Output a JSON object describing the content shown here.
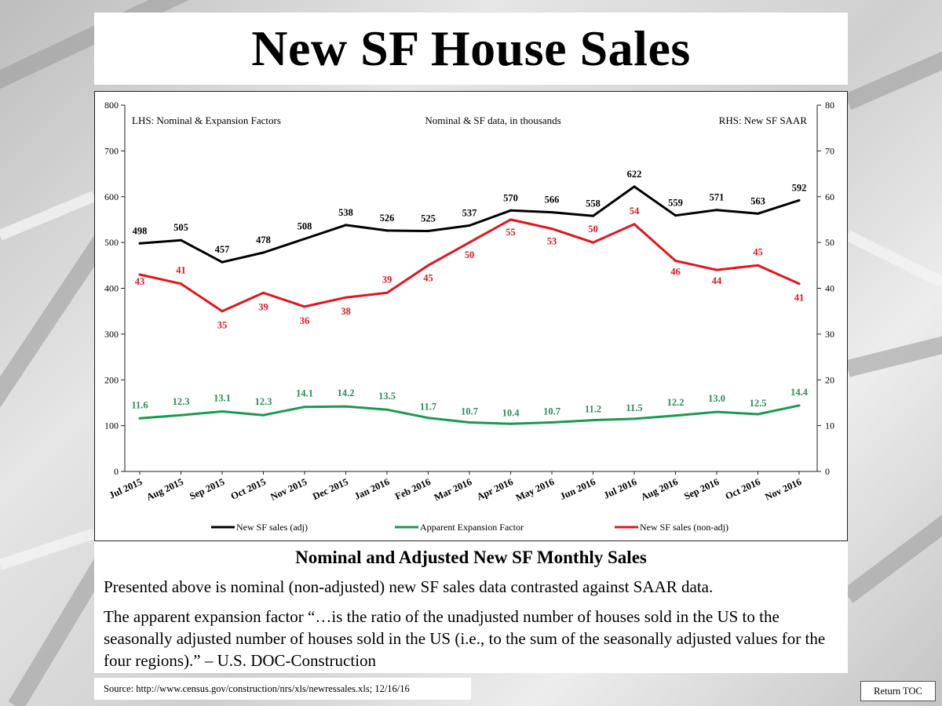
{
  "title": "New SF House Sales",
  "subtitle": "Nominal and Adjusted New SF Monthly Sales",
  "paragraph1": "Presented above is nominal (non-adjusted) new SF sales data contrasted against SAAR data.",
  "paragraph2": "The apparent expansion factor “…is the ratio of the unadjusted number of houses sold in the US to the seasonally adjusted number of houses sold in the US (i.e., to the sum of the seasonally adjusted values for the four regions).” – U.S. DOC-Construction",
  "source": "Source: http://www.census.gov/construction/nrs/xls/newressales.xls; 12/16/16",
  "return_toc": "Return TOC",
  "colors": {
    "adj": "#000000",
    "expansion": "#1a9a50",
    "nonadj": "#e0161b",
    "expansion_label": "#2e8b57"
  },
  "chart_data": {
    "type": "line",
    "annotations": {
      "left": "LHS: Nominal & Expansion Factors",
      "center": "Nominal & SF data, in thousands",
      "right": "RHS: New SF SAAR"
    },
    "categories": [
      "Jul 2015",
      "Aug 2015",
      "Sep 2015",
      "Oct 2015",
      "Nov 2015",
      "Dec 2015",
      "Jan 2016",
      "Feb 2016",
      "Mar 2016",
      "Apr 2016",
      "May 2016",
      "Jun 2016",
      "Jul 2016",
      "Aug 2016",
      "Sep 2016",
      "Oct 2016",
      "Nov 2016"
    ],
    "left_axis": {
      "ylim": [
        0,
        800
      ],
      "ticks": [
        "0",
        "100",
        "200",
        "300",
        "400",
        "500",
        "600",
        "700",
        "800"
      ]
    },
    "right_axis": {
      "ylim": [
        0,
        80
      ],
      "ticks": [
        "0",
        "10",
        "20",
        "30",
        "40",
        "50",
        "60",
        "70",
        "80"
      ]
    },
    "series": [
      {
        "name": "New SF sales (adj)",
        "axis": "left",
        "color": "#000000",
        "values": [
          498,
          505,
          457,
          478,
          508,
          538,
          526,
          525,
          537,
          570,
          566,
          558,
          622,
          559,
          571,
          563,
          592
        ],
        "labels": [
          "498",
          "505",
          "457",
          "478",
          "508",
          "538",
          "526",
          "525",
          "537",
          "570",
          "566",
          "558",
          "622",
          "559",
          "571",
          "563",
          "592"
        ]
      },
      {
        "name": "Apparent Expansion Factor",
        "axis": "right",
        "color": "#1a9a50",
        "values": [
          11.6,
          12.3,
          13.1,
          12.3,
          14.1,
          14.2,
          13.5,
          11.7,
          10.7,
          10.4,
          10.7,
          11.2,
          11.5,
          12.2,
          13.0,
          12.5,
          14.4
        ],
        "labels": [
          "11.6",
          "12.3",
          "13.1",
          "12.3",
          "14.1",
          "14.2",
          "13.5",
          "11.7",
          "10.7",
          "10.4",
          "10.7",
          "11.2",
          "11.5",
          "12.2",
          "13.0",
          "12.5",
          "14.4"
        ]
      },
      {
        "name": "New SF sales (non-adj)",
        "axis": "right",
        "color": "#e0161b",
        "values": [
          43,
          41,
          35,
          39,
          36,
          38,
          39,
          45,
          50,
          55,
          53,
          50,
          54,
          46,
          44,
          45,
          41
        ],
        "labels": [
          "43",
          "41",
          "35",
          "39",
          "36",
          "38",
          "39",
          "45",
          "50",
          "55",
          "53",
          "50",
          "54",
          "46",
          "44",
          "45",
          "41"
        ]
      }
    ],
    "legend": "bottom",
    "grid": false
  }
}
